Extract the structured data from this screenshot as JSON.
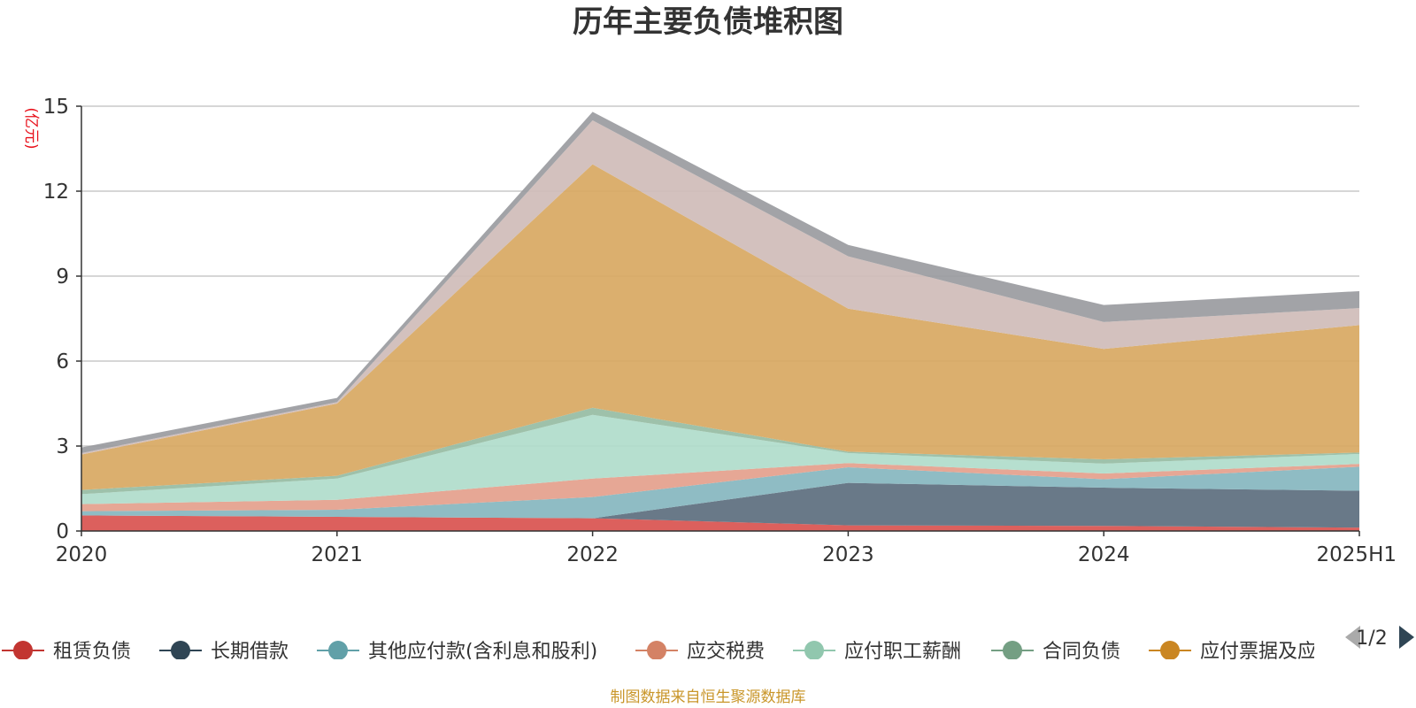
{
  "chart_data": {
    "type": "area",
    "stacked": true,
    "title": "历年主要负债堆积图",
    "unit_label": "(亿元)",
    "x": [
      "2020",
      "2021",
      "2022",
      "2023",
      "2024",
      "2025H1"
    ],
    "ylim": [
      0,
      15
    ],
    "yticks": [
      "0",
      "3",
      "6",
      "9",
      "12",
      "15"
    ],
    "grid": true,
    "series": [
      {
        "name": "租赁负债",
        "color": "#d9534f",
        "legend_color": "#c23531",
        "values": [
          0.55,
          0.5,
          0.45,
          0.2,
          0.18,
          0.12
        ]
      },
      {
        "name": "长期借款",
        "color": "#5c6e7e",
        "legend_color": "#2f4554",
        "values": [
          0,
          0,
          0,
          1.5,
          1.35,
          1.3
        ]
      },
      {
        "name": "其他应付款(含利息和股利)",
        "color": "#85b6bf",
        "legend_color": "#61a0a8",
        "values": [
          0.15,
          0.25,
          0.75,
          0.55,
          0.3,
          0.85
        ]
      },
      {
        "name": "应交税费",
        "color": "#e4a08c",
        "legend_color": "#d48265",
        "values": [
          0.25,
          0.35,
          0.65,
          0.15,
          0.2,
          0.1
        ]
      },
      {
        "name": "应付职工薪酬",
        "color": "#b0dccb",
        "legend_color": "#91c7ae",
        "values": [
          0.35,
          0.75,
          2.25,
          0.35,
          0.35,
          0.35
        ]
      },
      {
        "name": "合同负债",
        "color": "#96bca3",
        "legend_color": "#749f83",
        "values": [
          0.15,
          0.1,
          0.25,
          0.05,
          0.15,
          0.05
        ]
      },
      {
        "name": "应付票据及应付账款",
        "color": "#d8a862",
        "legend_color": "#ca8622",
        "values": [
          1.25,
          2.55,
          8.6,
          5.05,
          3.9,
          4.5
        ]
      },
      {
        "name": "",
        "color": "#cfbcb8",
        "values": [
          0.05,
          0.05,
          1.55,
          1.85,
          0.95,
          0.6
        ]
      },
      {
        "name": "",
        "color": "#9a9b9f",
        "values": [
          0.2,
          0.15,
          0.3,
          0.4,
          0.6,
          0.6
        ]
      }
    ],
    "legend_visible": [
      "租赁负债",
      "长期借款",
      "其他应付款(含利息和股利)",
      "应交税费",
      "应付职工薪酬",
      "合同负债",
      "应付票据及应付账款"
    ],
    "legend_placement": "bottom"
  },
  "legend_pager": {
    "text": "1/2",
    "prev_icon": "triangle-left-icon",
    "next_icon": "triangle-right-icon"
  },
  "footer": {
    "source": "制图数据来自恒生聚源数据库"
  }
}
